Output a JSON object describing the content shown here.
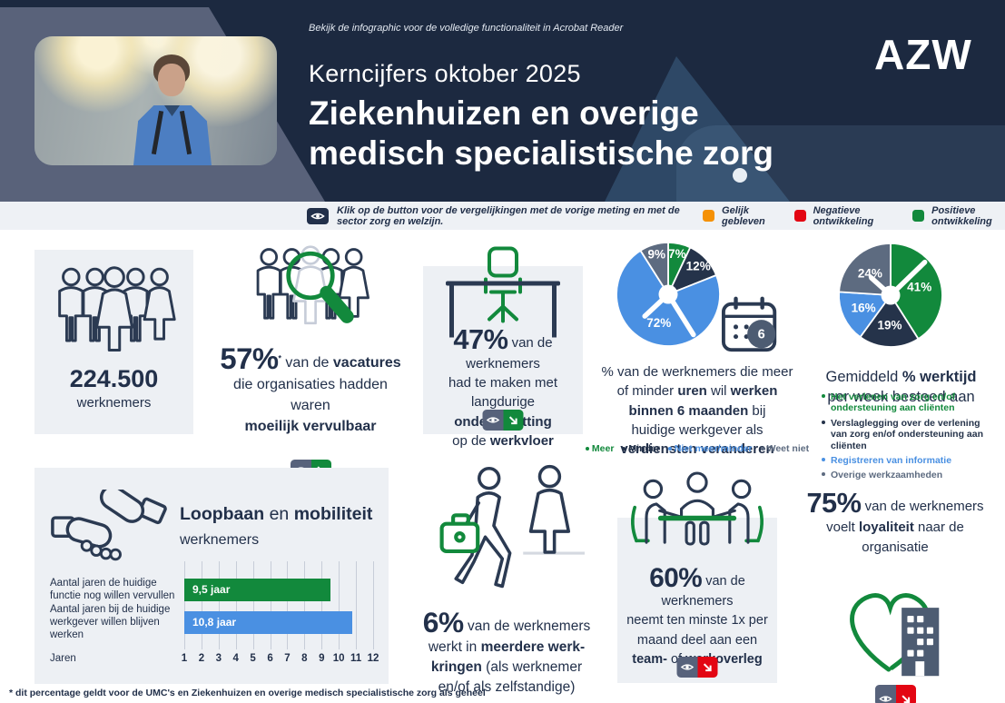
{
  "header": {
    "note": "Bekijk de infographic voor de volledige functionaliteit in Acrobat Reader",
    "kicker": "Kerncijfers oktober 2025",
    "title_line1": "Ziekenhuizen en overige",
    "title_line2": "medisch specialistische zorg",
    "logo_text": "AZW"
  },
  "legend_bar": {
    "instruction": "Klik op de button voor de vergelijkingen met de vorige meting en met de sector zorg en welzijn.",
    "items": [
      {
        "label": "Gelijk gebleven",
        "color": "#F59105"
      },
      {
        "label": "Negatieve ontwikkeling",
        "color": "#E30613"
      },
      {
        "label": "Positieve ontwikkeling",
        "color": "#12893C"
      }
    ]
  },
  "theme": {
    "header_bg": "#1C2940",
    "header_band": "#59627A",
    "card_bg": "#EDF0F4",
    "text": "#22304A",
    "green": "#12893C",
    "blue": "#4A90E2",
    "navy": "#25334A",
    "slate": "#5D6B80",
    "orange": "#F59105",
    "red": "#E30613",
    "button_eye_bg": "#57627B"
  },
  "stats": {
    "workers": {
      "value": "224.500",
      "label": "werknemers"
    },
    "vacancies": {
      "trend": "positive",
      "text": [
        {
          "t": "57%",
          "c": "pct"
        },
        {
          "t": "*",
          "c": "sup"
        },
        {
          "t": " van de ",
          "c": ""
        },
        {
          "t": "vacatures",
          "c": "b"
        },
        {
          "br": true
        },
        {
          "t": "die organisaties hadden waren",
          "c": ""
        },
        {
          "br": true
        },
        {
          "t": "moeilijk vervulbaar",
          "c": "b"
        }
      ]
    },
    "understaffing": {
      "trend": "positive",
      "text": [
        {
          "t": "47%",
          "c": "pct"
        },
        {
          "t": " van de werknemers",
          "c": ""
        },
        {
          "br": true
        },
        {
          "t": "had te maken met langdurige",
          "c": ""
        },
        {
          "br": true
        },
        {
          "t": "onderbezetting",
          "c": "b"
        },
        {
          "br": true
        },
        {
          "t": "op de ",
          "c": ""
        },
        {
          "t": "werkvloer",
          "c": "b"
        }
      ]
    },
    "hours_change": {
      "calendar_badge": "6",
      "text": [
        {
          "t": "% van de werknemers die meer",
          "c": ""
        },
        {
          "br": true
        },
        {
          "t": "of minder ",
          "c": ""
        },
        {
          "t": "uren",
          "c": "b"
        },
        {
          "t": " wil ",
          "c": ""
        },
        {
          "t": "werken",
          "c": "b"
        },
        {
          "br": true
        },
        {
          "t": "binnen 6 maanden",
          "c": "b"
        },
        {
          "t": " bij",
          "c": ""
        },
        {
          "br": true
        },
        {
          "t": "huidige werkgever als",
          "c": ""
        },
        {
          "br": true
        },
        {
          "t": "verdiensten veranderen",
          "c": "b"
        }
      ]
    },
    "worktime": {
      "title": [
        {
          "t": "Gemiddeld ",
          "c": ""
        },
        {
          "t": "% werktijd",
          "c": "b"
        },
        {
          "br": true
        },
        {
          "t": "per week besteed aan",
          "c": ""
        }
      ]
    },
    "career": {
      "title": [
        {
          "t": "Loopbaan",
          "c": "b"
        },
        {
          "t": " en ",
          "c": ""
        },
        {
          "t": "mobiliteit",
          "c": "b"
        },
        {
          "br": true
        },
        {
          "t": "werknemers",
          "c": "s"
        }
      ]
    },
    "multiple_jobs": {
      "text": [
        {
          "t": "6%",
          "c": "pct"
        },
        {
          "t": " van de werknemers",
          "c": ""
        },
        {
          "br": true
        },
        {
          "t": "werkt in ",
          "c": ""
        },
        {
          "t": "meerdere werk-",
          "c": "b"
        },
        {
          "br": true
        },
        {
          "t": "kringen",
          "c": "b"
        },
        {
          "t": " (als werknemer",
          "c": ""
        },
        {
          "br": true
        },
        {
          "t": "en/of als zelfstandige)",
          "c": ""
        }
      ]
    },
    "meetings": {
      "trend": "negative",
      "text": [
        {
          "t": "60%",
          "c": "pct"
        },
        {
          "t": " van de werknemers",
          "c": ""
        },
        {
          "br": true
        },
        {
          "t": "neemt ten minste 1x per",
          "c": ""
        },
        {
          "br": true
        },
        {
          "t": "maand deel aan een",
          "c": ""
        },
        {
          "br": true
        },
        {
          "t": "team-",
          "c": "b"
        },
        {
          "t": " of ",
          "c": ""
        },
        {
          "t": "werkoverleg",
          "c": "b"
        }
      ]
    },
    "loyalty": {
      "trend": "negative",
      "text": [
        {
          "t": "75%",
          "c": "pct"
        },
        {
          "t": " van de werknemers",
          "c": ""
        },
        {
          "br": true
        },
        {
          "t": "voelt ",
          "c": ""
        },
        {
          "t": "loyaliteit",
          "c": "b"
        },
        {
          "t": " naar de",
          "c": ""
        },
        {
          "br": true
        },
        {
          "t": "organisatie",
          "c": ""
        }
      ]
    }
  },
  "chart_data": [
    {
      "type": "pie",
      "title": "% van de werknemers die meer of minder uren wil werken binnen 6 maanden bij huidige werkgever als verdiensten veranderen",
      "labels": [
        "Meer",
        "Minder",
        "Niet meer/minder",
        "Weet niet"
      ],
      "values": [
        7,
        12,
        72,
        9
      ],
      "unit": "%",
      "colors": [
        "#12893C",
        "#25334A",
        "#4A90E2",
        "#5D6B80"
      ],
      "legend_position": "bottom"
    },
    {
      "type": "pie",
      "title": "Gemiddeld % werktijd per week besteed aan",
      "labels": [
        "Het verlenen van zorg en/of ondersteuning aan cliënten",
        "Verslaglegging over de verlening van zorg en/of ondersteuning aan cliënten",
        "Registreren van informatie",
        "Overige werkzaamheden"
      ],
      "values": [
        41,
        19,
        16,
        24
      ],
      "unit": "%",
      "colors": [
        "#12893C",
        "#25334A",
        "#4A90E2",
        "#5D6B80"
      ],
      "legend_position": "bottom"
    },
    {
      "type": "bar",
      "orientation": "horizontal",
      "title": "Loopbaan en mobiliteit werknemers",
      "categories": [
        "Aantal jaren de huidige functie nog willen vervullen",
        "Aantal jaren bij de huidige werkgever willen blijven werken"
      ],
      "values": [
        9.5,
        10.8
      ],
      "value_labels": [
        "9,5 jaar",
        "10,8 jaar"
      ],
      "colors": [
        "#12893C",
        "#4A90E2"
      ],
      "xlabel": "Jaren",
      "x_ticks": [
        1,
        2,
        3,
        4,
        5,
        6,
        7,
        8,
        9,
        10,
        11,
        12
      ],
      "xlim": [
        1,
        12
      ],
      "grid": true
    }
  ],
  "footer": {
    "note": "* dit percentage geldt voor de UMC's en Ziekenhuizen en overige medisch specialistische zorg als geheel"
  }
}
